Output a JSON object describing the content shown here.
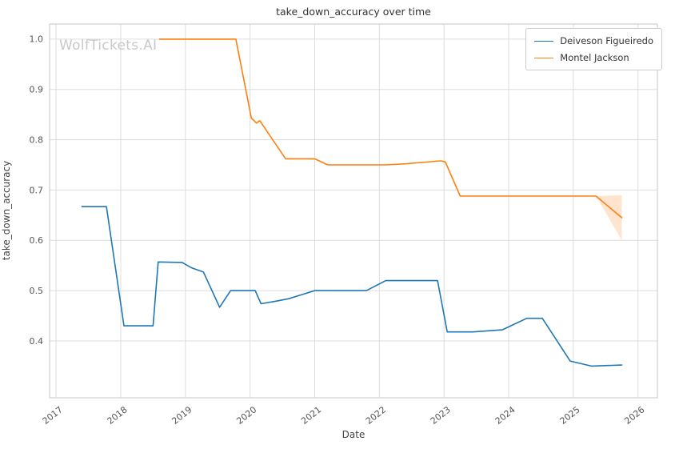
{
  "watermark": "WolfTickets.AI",
  "chart_data": {
    "type": "line",
    "title": "take_down_accuracy over time",
    "xlabel": "Date",
    "ylabel": "take_down_accuracy",
    "xlim": [
      2016.9,
      2026.3
    ],
    "ylim": [
      0.287,
      1.03
    ],
    "x_ticks": [
      2017,
      2018,
      2019,
      2020,
      2021,
      2022,
      2023,
      2024,
      2025,
      2026
    ],
    "y_ticks": [
      0.4,
      0.5,
      0.6,
      0.7,
      0.8,
      0.9,
      1.0
    ],
    "grid": true,
    "grid_color": "#dddddd",
    "border_color": "#d0d0d0",
    "tick_label_color": "#555555",
    "legend_position": "upper right",
    "series": [
      {
        "name": "Deiveson Figueiredo",
        "color": "#1f77b4",
        "points": [
          [
            2017.4,
            0.667
          ],
          [
            2017.78,
            0.667
          ],
          [
            2018.05,
            0.43
          ],
          [
            2018.33,
            0.43
          ],
          [
            2018.5,
            0.43
          ],
          [
            2018.58,
            0.557
          ],
          [
            2018.95,
            0.556
          ],
          [
            2019.1,
            0.545
          ],
          [
            2019.28,
            0.537
          ],
          [
            2019.53,
            0.467
          ],
          [
            2019.7,
            0.5
          ],
          [
            2020.08,
            0.5
          ],
          [
            2020.17,
            0.474
          ],
          [
            2020.4,
            0.479
          ],
          [
            2020.6,
            0.484
          ],
          [
            2021.0,
            0.5
          ],
          [
            2021.45,
            0.5
          ],
          [
            2021.8,
            0.5
          ],
          [
            2022.1,
            0.52
          ],
          [
            2022.55,
            0.52
          ],
          [
            2022.9,
            0.52
          ],
          [
            2023.05,
            0.418
          ],
          [
            2023.45,
            0.418
          ],
          [
            2023.9,
            0.422
          ],
          [
            2024.28,
            0.445
          ],
          [
            2024.52,
            0.445
          ],
          [
            2024.95,
            0.36
          ],
          [
            2025.28,
            0.35
          ],
          [
            2025.75,
            0.352
          ]
        ]
      },
      {
        "name": "Montel Jackson",
        "color": "#ff7f0e",
        "points": [
          [
            2018.6,
            1.0
          ],
          [
            2019.05,
            1.0
          ],
          [
            2019.78,
            1.0
          ],
          [
            2020.02,
            0.843
          ],
          [
            2020.1,
            0.833
          ],
          [
            2020.15,
            0.838
          ],
          [
            2020.55,
            0.762
          ],
          [
            2021.0,
            0.762
          ],
          [
            2021.2,
            0.75
          ],
          [
            2021.75,
            0.75
          ],
          [
            2022.1,
            0.75
          ],
          [
            2022.4,
            0.752
          ],
          [
            2022.95,
            0.758
          ],
          [
            2023.02,
            0.756
          ],
          [
            2023.25,
            0.688
          ],
          [
            2023.75,
            0.688
          ],
          [
            2024.5,
            0.688
          ],
          [
            2025.35,
            0.688
          ],
          [
            2025.75,
            0.645
          ]
        ],
        "band": {
          "x": [
            2025.35,
            2025.75
          ],
          "upper": [
            0.688,
            0.69
          ],
          "lower": [
            0.688,
            0.6
          ],
          "opacity": 0.2
        }
      }
    ]
  }
}
